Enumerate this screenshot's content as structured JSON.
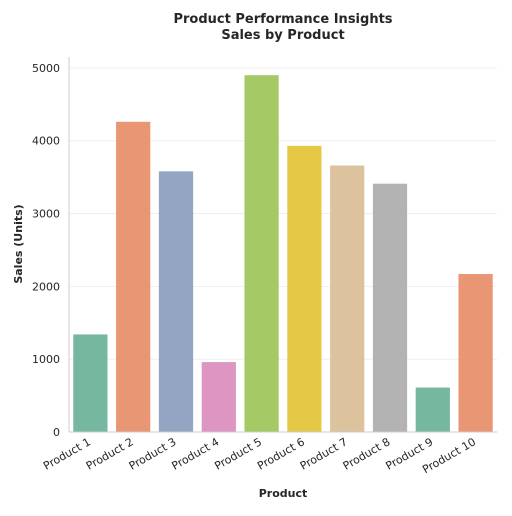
{
  "chart_data": {
    "type": "bar",
    "title": "Product Performance Insights",
    "subtitle": "Sales by Product",
    "xlabel": "Product",
    "ylabel": "Sales (Units)",
    "categories": [
      "Product 1",
      "Product 2",
      "Product 3",
      "Product 4",
      "Product 5",
      "Product 6",
      "Product 7",
      "Product 8",
      "Product 9",
      "Product 10"
    ],
    "values": [
      1340,
      4260,
      3580,
      960,
      4900,
      3930,
      3660,
      3410,
      610,
      2170
    ],
    "colors": [
      "#76b7a0",
      "#e99674",
      "#94a5c4",
      "#dd96c2",
      "#a4c965",
      "#e5c946",
      "#dcc39e",
      "#b3b3b3",
      "#76b7a0",
      "#e99674"
    ],
    "ylim": [
      0,
      5150
    ],
    "yticks": [
      0,
      1000,
      2000,
      3000,
      4000,
      5000
    ],
    "grid": true,
    "legend": "none"
  }
}
